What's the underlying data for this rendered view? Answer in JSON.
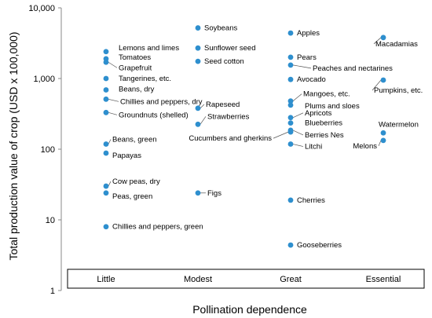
{
  "chart_data": {
    "type": "scatter",
    "xlabel": "Pollination dependence",
    "ylabel": "Total production value of crop (USD x 100,000)",
    "yscale": "log",
    "ylim": [
      1,
      10000
    ],
    "y_ticks": [
      "1",
      "10",
      "100",
      "1,000",
      "10,000"
    ],
    "categories": [
      "Little",
      "Modest",
      "Great",
      "Essential"
    ],
    "marker_color": "#2e8fce",
    "points": [
      {
        "cat": "Little",
        "y": 2400,
        "label": "Lemons and limes"
      },
      {
        "cat": "Little",
        "y": 1900,
        "label": "Tomatoes"
      },
      {
        "cat": "Little",
        "y": 1700,
        "label": "Grapefruit"
      },
      {
        "cat": "Little",
        "y": 1000,
        "label": "Tangerines, etc."
      },
      {
        "cat": "Little",
        "y": 690,
        "label": "Beans, dry"
      },
      {
        "cat": "Little",
        "y": 510,
        "label": "Chillies and peppers, dry"
      },
      {
        "cat": "Little",
        "y": 330,
        "label": "Groundnuts (shelled)"
      },
      {
        "cat": "Little",
        "y": 118,
        "label": "Beans, green"
      },
      {
        "cat": "Little",
        "y": 88,
        "label": "Papayas"
      },
      {
        "cat": "Little",
        "y": 30,
        "label": "Cow peas, dry"
      },
      {
        "cat": "Little",
        "y": 24,
        "label": "Peas, green"
      },
      {
        "cat": "Little",
        "y": 8,
        "label": "Chillies and peppers, green"
      },
      {
        "cat": "Modest",
        "y": 5200,
        "label": "Soybeans"
      },
      {
        "cat": "Modest",
        "y": 2700,
        "label": "Sunflower seed"
      },
      {
        "cat": "Modest",
        "y": 1750,
        "label": "Seed cotton"
      },
      {
        "cat": "Modest",
        "y": 380,
        "label": "Rapeseed"
      },
      {
        "cat": "Modest",
        "y": 225,
        "label": "Strawberries"
      },
      {
        "cat": "Modest",
        "y": 24,
        "label": "Figs"
      },
      {
        "cat": "Great",
        "y": 4400,
        "label": "Apples"
      },
      {
        "cat": "Great",
        "y": 2000,
        "label": "Pears"
      },
      {
        "cat": "Great",
        "y": 1550,
        "label": "Peaches and nectarines"
      },
      {
        "cat": "Great",
        "y": 970,
        "label": "Avocado"
      },
      {
        "cat": "Great",
        "y": 480,
        "label": "Mangoes, etc."
      },
      {
        "cat": "Great",
        "y": 420,
        "label": "Plums and sloes"
      },
      {
        "cat": "Great",
        "y": 280,
        "label": "Apricots"
      },
      {
        "cat": "Great",
        "y": 235,
        "label": "Blueberries"
      },
      {
        "cat": "Great",
        "y": 185,
        "label": "Berries Nes"
      },
      {
        "cat": "Great",
        "y": 175,
        "label": "Cucumbers and gherkins"
      },
      {
        "cat": "Great",
        "y": 118,
        "label": "Litchi"
      },
      {
        "cat": "Great",
        "y": 19,
        "label": "Cherries"
      },
      {
        "cat": "Great",
        "y": 4.4,
        "label": "Gooseberries"
      },
      {
        "cat": "Essential",
        "y": 3800,
        "label": "Macadamias"
      },
      {
        "cat": "Essential",
        "y": 950,
        "label": "Pumpkins, etc."
      },
      {
        "cat": "Essential",
        "y": 170,
        "label": "Watermelon"
      },
      {
        "cat": "Essential",
        "y": 133,
        "label": "Melons"
      }
    ]
  }
}
